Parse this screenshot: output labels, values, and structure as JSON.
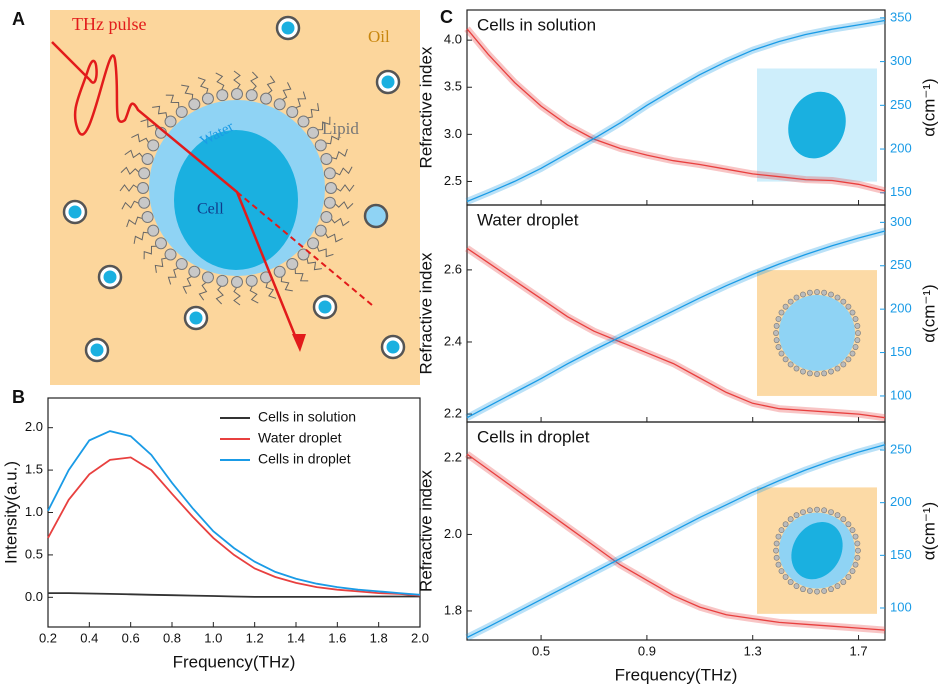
{
  "panel_labels": [
    "A",
    "B",
    "C"
  ],
  "diagram": {
    "pulse": "THz pulse",
    "oil": "Oil",
    "water": "Water",
    "lipid": "Lipid",
    "cell": "Cell"
  },
  "chart_data": [
    {
      "type": "line",
      "xlabel": "Frequency(THz)",
      "ylabel": "Intensity(a.u.)",
      "x": [
        0.2,
        0.3,
        0.4,
        0.5,
        0.6,
        0.7,
        0.8,
        0.9,
        1.0,
        1.1,
        1.2,
        1.3,
        1.4,
        1.5,
        1.6,
        1.7,
        1.8,
        1.9,
        2.0
      ],
      "xlim": [
        0.2,
        2.0
      ],
      "xticks": [
        0.2,
        0.4,
        0.6,
        0.8,
        {
          "value": 1.0,
          "label": "1.0"
        },
        1.2,
        1.4,
        1.6,
        1.8,
        {
          "value": 2.0,
          "label": "2.0"
        }
      ],
      "ylim": [
        -0.35,
        2.35
      ],
      "yticks": [
        {
          "value": 0,
          "label": "0.0"
        },
        0.5,
        {
          "value": 1.0,
          "label": "1.0"
        },
        1.5,
        {
          "value": 2.0,
          "label": "2.0"
        }
      ],
      "legend": "upper right",
      "series": [
        {
          "name": "Cells in solution",
          "color": "#333333",
          "values": [
            0.05,
            0.05,
            0.045,
            0.04,
            0.035,
            0.03,
            0.025,
            0.02,
            0.015,
            0.01,
            0.005,
            0.005,
            0.005,
            0.005,
            0.005,
            0.01,
            0.01,
            0.01,
            0.01
          ]
        },
        {
          "name": "Water droplet",
          "color": "#e8403f",
          "values": [
            0.7,
            1.15,
            1.45,
            1.62,
            1.65,
            1.5,
            1.22,
            0.95,
            0.7,
            0.5,
            0.34,
            0.24,
            0.17,
            0.12,
            0.09,
            0.07,
            0.05,
            0.04,
            0.02
          ]
        },
        {
          "name": "Cells in droplet",
          "color": "#1a9be6",
          "values": [
            1.02,
            1.5,
            1.85,
            1.96,
            1.9,
            1.68,
            1.35,
            1.05,
            0.78,
            0.58,
            0.42,
            0.3,
            0.22,
            0.16,
            0.12,
            0.09,
            0.07,
            0.05,
            0.03
          ]
        }
      ]
    },
    {
      "type": "line",
      "title": "Cells in solution",
      "ylabel": "Refractive index",
      "y2label": "α(cm⁻¹)",
      "x": [
        0.22,
        0.3,
        0.4,
        0.5,
        0.6,
        0.7,
        0.8,
        0.9,
        1.0,
        1.1,
        1.2,
        1.3,
        1.4,
        1.5,
        1.6,
        1.7,
        1.8
      ],
      "xlim": [
        0.22,
        1.8
      ],
      "xticks": [
        0.5,
        0.9,
        1.3,
        1.7
      ],
      "ylim": [
        2.25,
        4.32
      ],
      "yticks": [
        2.5,
        {
          "value": 3.0,
          "label": "3.0"
        },
        3.5,
        {
          "value": 4.0,
          "label": "4.0"
        }
      ],
      "y2lim": [
        136,
        359
      ],
      "y2ticks": [
        150,
        200,
        250,
        300,
        350
      ],
      "series": [
        {
          "color": "#e8403f",
          "values": [
            4.12,
            3.85,
            3.55,
            3.3,
            3.1,
            2.95,
            2.85,
            2.78,
            2.72,
            2.68,
            2.63,
            2.58,
            2.55,
            2.52,
            2.51,
            2.47,
            2.4
          ]
        },
        {
          "color": "#1a9be6",
          "axis": "y2",
          "values": [
            140,
            150,
            163,
            178,
            195,
            212,
            230,
            250,
            268,
            285,
            300,
            313,
            323,
            331,
            337,
            342,
            347
          ]
        }
      ]
    },
    {
      "type": "line",
      "title": "Water droplet",
      "ylabel": "Refractive index",
      "y2label": "α(cm⁻¹)",
      "x": [
        0.22,
        0.3,
        0.4,
        0.5,
        0.6,
        0.7,
        0.8,
        0.9,
        1.0,
        1.1,
        1.2,
        1.3,
        1.4,
        1.5,
        1.6,
        1.7,
        1.8
      ],
      "xlim": [
        0.22,
        1.8
      ],
      "xticks": [
        0.5,
        0.9,
        1.3,
        1.7
      ],
      "ylim": [
        2.178,
        2.78
      ],
      "yticks": [
        2.2,
        2.4,
        2.6
      ],
      "y2lim": [
        70,
        320
      ],
      "y2ticks": [
        100,
        150,
        200,
        250,
        300
      ],
      "series": [
        {
          "color": "#e8403f",
          "values": [
            2.66,
            2.62,
            2.57,
            2.52,
            2.47,
            2.43,
            2.4,
            2.37,
            2.34,
            2.3,
            2.26,
            2.23,
            2.215,
            2.21,
            2.205,
            2.2,
            2.19
          ]
        },
        {
          "color": "#1a9be6",
          "axis": "y2",
          "values": [
            75,
            88,
            104,
            120,
            137,
            153,
            168,
            183,
            198,
            213,
            227,
            240,
            252,
            263,
            273,
            282,
            290
          ]
        }
      ]
    },
    {
      "type": "line",
      "title": "Cells in droplet",
      "xlabel": "Frequency(THz)",
      "ylabel": "Refractive index",
      "y2label": "α(cm⁻¹)",
      "x": [
        0.22,
        0.3,
        0.4,
        0.5,
        0.6,
        0.7,
        0.8,
        0.9,
        1.0,
        1.1,
        1.2,
        1.3,
        1.4,
        1.5,
        1.6,
        1.7,
        1.8
      ],
      "xlim": [
        0.22,
        1.8
      ],
      "xticks": [
        0.5,
        0.9,
        1.3,
        1.7
      ],
      "ylim": [
        1.724,
        2.294
      ],
      "yticks": [
        1.8,
        {
          "value": 2.0,
          "label": "2.0"
        },
        2.2
      ],
      "y2lim": [
        69.6,
        276.6
      ],
      "y2ticks": [
        100,
        150,
        200,
        250
      ],
      "series": [
        {
          "color": "#e8403f",
          "values": [
            2.21,
            2.17,
            2.12,
            2.07,
            2.02,
            1.97,
            1.92,
            1.88,
            1.84,
            1.81,
            1.79,
            1.78,
            1.77,
            1.765,
            1.76,
            1.755,
            1.75
          ]
        },
        {
          "color": "#1a9be6",
          "axis": "y2",
          "values": [
            72,
            82,
            95,
            108,
            121,
            134,
            147,
            160,
            173,
            186,
            198,
            210,
            221,
            231,
            240,
            248,
            255
          ]
        }
      ]
    }
  ]
}
